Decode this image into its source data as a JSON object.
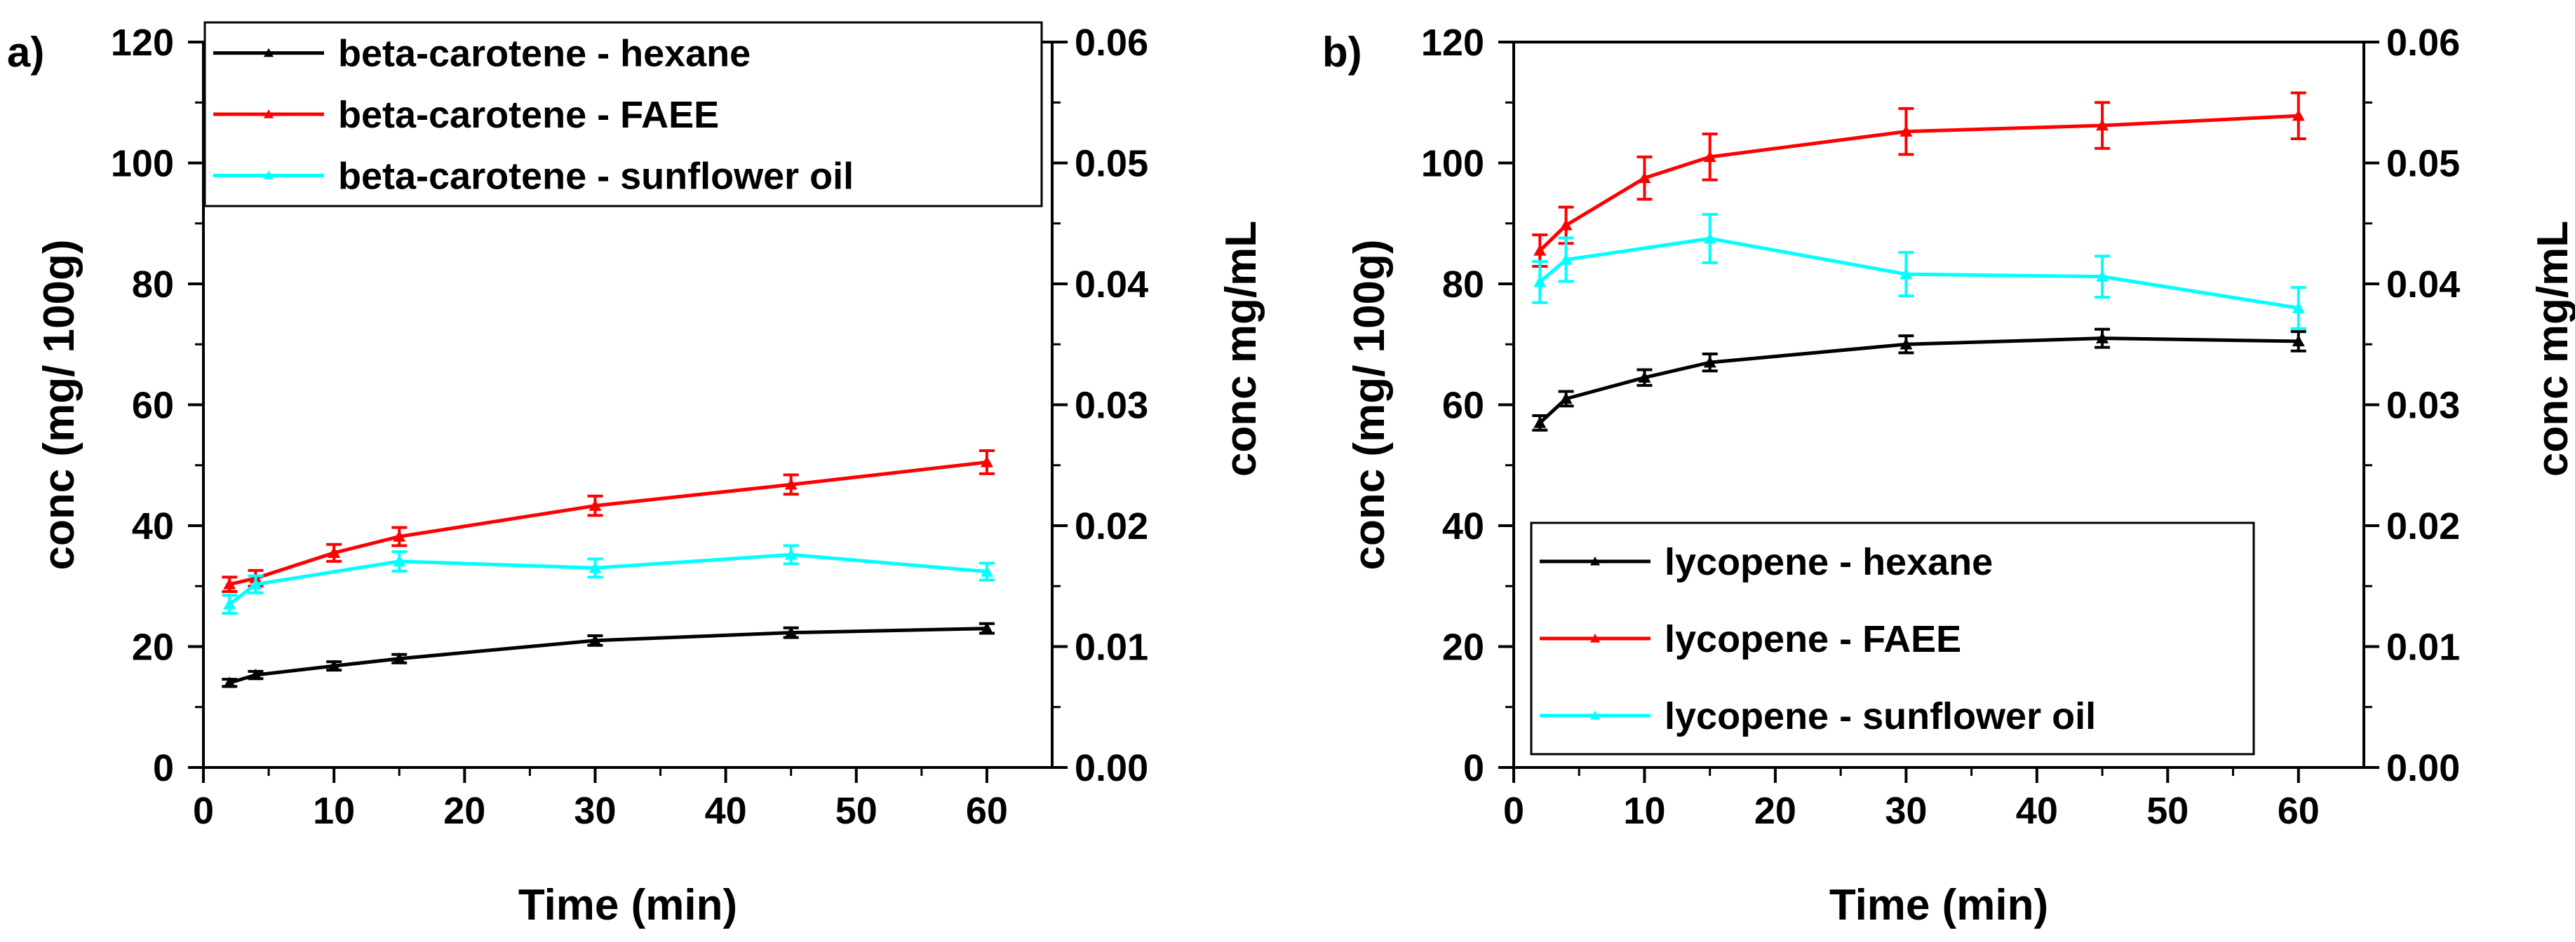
{
  "chart_data": [
    {
      "type": "line",
      "panel_label": "a)",
      "xlabel": "Time (min)",
      "ylabel": "conc (mg/ 100g)",
      "y2label": "conc mg/mL",
      "xlim": [
        0,
        65
      ],
      "ylim": [
        0,
        120
      ],
      "y2lim": [
        0,
        0.06
      ],
      "xticks": [
        "0",
        "10",
        "20",
        "30",
        "40",
        "50",
        "60"
      ],
      "yticks": [
        "0",
        "20",
        "40",
        "60",
        "80",
        "100",
        "120"
      ],
      "y2ticks": [
        "0.00",
        "0.01",
        "0.02",
        "0.03",
        "0.04",
        "0.05",
        "0.06"
      ],
      "legend_position": "top-left",
      "x": [
        2,
        4,
        10,
        15,
        30,
        45,
        60
      ],
      "series": [
        {
          "name": "beta-carotene - hexane",
          "color": "#000000",
          "values": [
            14,
            15.3,
            16.8,
            18,
            21,
            22.3,
            23
          ],
          "errors": [
            0.6,
            0.6,
            0.7,
            0.7,
            0.8,
            0.8,
            0.8
          ]
        },
        {
          "name": "beta-carotene -  FAEE",
          "color": "#ff0000",
          "values": [
            30.3,
            31.3,
            35.5,
            38.2,
            43.3,
            46.8,
            50.5
          ],
          "errors": [
            1.2,
            1.3,
            1.4,
            1.5,
            1.6,
            1.6,
            1.9
          ]
        },
        {
          "name": "beta-carotene -  sunflower oil",
          "color": "#00ffff",
          "values": [
            27,
            30.3,
            null,
            34.1,
            33,
            35.2,
            32.4
          ],
          "errors": [
            1.5,
            1.4,
            null,
            1.6,
            1.5,
            1.5,
            1.4
          ]
        }
      ]
    },
    {
      "type": "line",
      "panel_label": "b)",
      "xlabel": "Time (min)",
      "ylabel": "conc (mg/ 100g)",
      "y2label": "conc mg/mL",
      "xlim": [
        0,
        65
      ],
      "ylim": [
        0,
        120
      ],
      "y2lim": [
        0,
        0.06
      ],
      "xticks": [
        "0",
        "10",
        "20",
        "30",
        "40",
        "50",
        "60"
      ],
      "yticks": [
        "0",
        "20",
        "40",
        "60",
        "80",
        "100",
        "120"
      ],
      "y2ticks": [
        "0.00",
        "0.01",
        "0.02",
        "0.03",
        "0.04",
        "0.05",
        "0.06"
      ],
      "legend_position": "bottom-left",
      "x": [
        2,
        4,
        10,
        15,
        30,
        45,
        60
      ],
      "series": [
        {
          "name": "lycopene - hexane",
          "color": "#000000",
          "values": [
            57,
            61,
            64.5,
            67,
            70,
            71,
            70.5
          ],
          "errors": [
            1.2,
            1.2,
            1.3,
            1.4,
            1.4,
            1.5,
            1.6
          ]
        },
        {
          "name": "lycopene -  FAEE",
          "color": "#ff0000",
          "values": [
            85.5,
            89.7,
            97.5,
            101,
            105.2,
            106.2,
            107.8
          ],
          "errors": [
            2.6,
            3.0,
            3.5,
            3.8,
            3.8,
            3.8,
            3.8
          ]
        },
        {
          "name": "lycopene -  sunflower oil",
          "color": "#00ffff",
          "values": [
            80.3,
            84,
            null,
            87.5,
            81.6,
            81.2,
            76
          ],
          "errors": [
            3.4,
            3.6,
            null,
            4.0,
            3.6,
            3.4,
            3.4
          ]
        }
      ]
    }
  ]
}
